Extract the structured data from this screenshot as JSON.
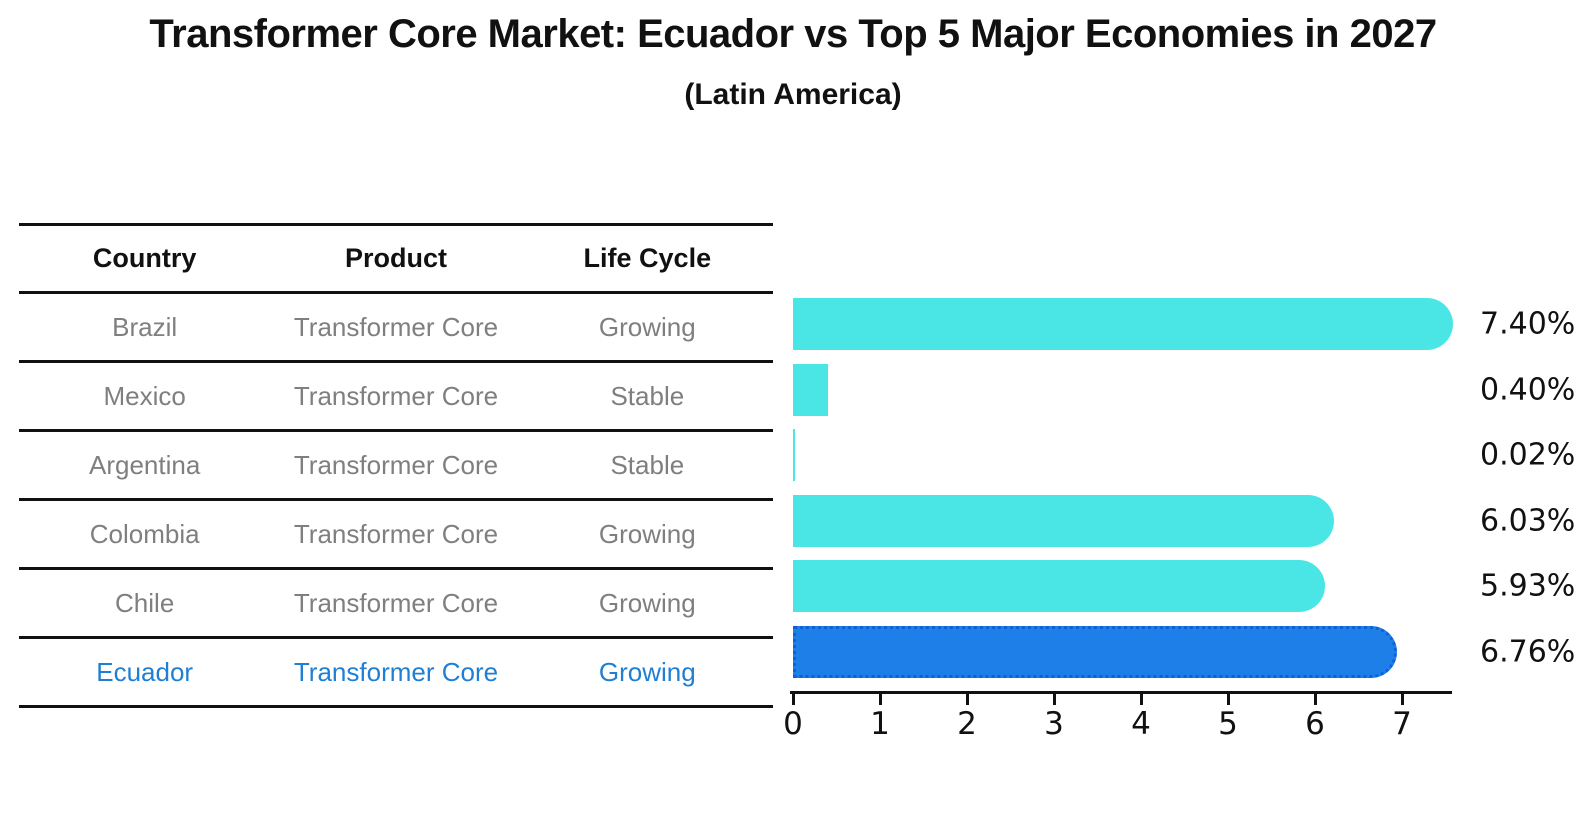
{
  "title": "Transformer Core Market: Ecuador vs Top 5 Major Economies in 2027",
  "subtitle": "(Latin America)",
  "table": {
    "headers": [
      "Country",
      "Product",
      "Life Cycle"
    ],
    "rows": [
      {
        "country": "Brazil",
        "product": "Transformer Core",
        "life_cycle": "Growing",
        "highlight": false
      },
      {
        "country": "Mexico",
        "product": "Transformer Core",
        "life_cycle": "Stable",
        "highlight": false
      },
      {
        "country": "Argentina",
        "product": "Transformer Core",
        "life_cycle": "Stable",
        "highlight": false
      },
      {
        "country": "Colombia",
        "product": "Transformer Core",
        "life_cycle": "Growing",
        "highlight": false
      },
      {
        "country": "Chile",
        "product": "Transformer Core",
        "life_cycle": "Growing",
        "highlight": false
      },
      {
        "country": "Ecuador",
        "product": "Transformer Core",
        "life_cycle": "Growing",
        "highlight": true
      }
    ]
  },
  "chart_data": {
    "type": "bar",
    "orientation": "horizontal",
    "title": "Transformer Core Market: Ecuador vs Top 5 Major Economies in 2027",
    "subtitle": "(Latin America)",
    "categories": [
      "Brazil",
      "Mexico",
      "Argentina",
      "Colombia",
      "Chile",
      "Ecuador"
    ],
    "values": [
      7.4,
      0.4,
      0.02,
      6.03,
      5.93,
      6.76
    ],
    "value_labels": [
      "7.40%",
      "0.40%",
      "0.02%",
      "6.03%",
      "5.93%",
      "6.76%"
    ],
    "unit": "percent",
    "x_ticks": [
      0,
      1,
      2,
      3,
      4,
      5,
      6,
      7
    ],
    "xlim": [
      0,
      7.6
    ],
    "grid": false,
    "legend": "none",
    "bar_color": "#4ae5e5",
    "highlight_index": 5,
    "highlight_color": "#1e7fe8",
    "highlight_border_color": "#0e62d6",
    "highlight_text_color": "#1f7fd4",
    "table_text_color": "#7f7f7f",
    "axis_color": "#111111"
  }
}
